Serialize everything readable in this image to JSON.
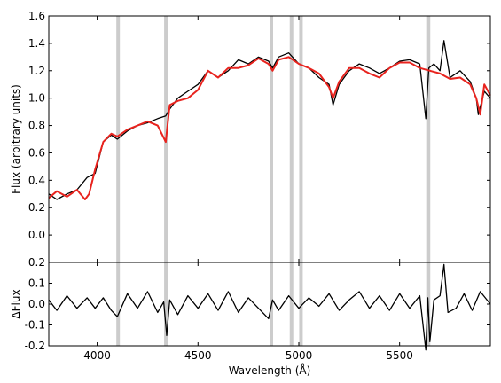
{
  "chart_data": [
    {
      "type": "line",
      "panel": "top",
      "title": "",
      "xlabel": "",
      "ylabel": "Flux (arbitrary units)",
      "xlim": [
        3760,
        5950
      ],
      "ylim": [
        -0.2,
        1.6
      ],
      "yticks": [
        "0.0",
        "0.2",
        "0.4",
        "0.6",
        "0.8",
        "1.0",
        "1.2",
        "1.4",
        "1.6"
      ],
      "xticks": [
        4000,
        4500,
        5000,
        5500
      ],
      "grid": false,
      "legend": "none",
      "series": [
        {
          "color": "#000000",
          "x": [
            3760,
            3800,
            3850,
            3900,
            3950,
            3990,
            4030,
            4070,
            4100,
            4150,
            4200,
            4250,
            4300,
            4340,
            4360,
            4400,
            4450,
            4500,
            4550,
            4600,
            4650,
            4700,
            4750,
            4800,
            4850,
            4870,
            4900,
            4950,
            5000,
            5050,
            5100,
            5150,
            5170,
            5200,
            5250,
            5300,
            5350,
            5400,
            5450,
            5500,
            5550,
            5600,
            5630,
            5645,
            5670,
            5700,
            5720,
            5750,
            5800,
            5850,
            5880,
            5890,
            5920,
            5950
          ],
          "y": [
            0.3,
            0.26,
            0.3,
            0.33,
            0.42,
            0.45,
            0.68,
            0.73,
            0.7,
            0.76,
            0.8,
            0.82,
            0.85,
            0.87,
            0.92,
            1.0,
            1.05,
            1.1,
            1.2,
            1.15,
            1.2,
            1.28,
            1.25,
            1.3,
            1.27,
            1.22,
            1.3,
            1.33,
            1.25,
            1.22,
            1.15,
            1.1,
            0.95,
            1.1,
            1.2,
            1.25,
            1.22,
            1.18,
            1.22,
            1.27,
            1.28,
            1.25,
            0.85,
            1.22,
            1.25,
            1.2,
            1.42,
            1.15,
            1.2,
            1.12,
            1.0,
            0.88,
            1.05,
            1.0
          ]
        },
        {
          "color": "#e8231e",
          "x": [
            3760,
            3800,
            3850,
            3900,
            3940,
            3960,
            3990,
            4030,
            4070,
            4100,
            4150,
            4200,
            4250,
            4300,
            4340,
            4360,
            4400,
            4450,
            4500,
            4550,
            4600,
            4650,
            4700,
            4750,
            4800,
            4850,
            4870,
            4900,
            4950,
            5000,
            5050,
            5100,
            5150,
            5170,
            5200,
            5250,
            5300,
            5350,
            5400,
            5450,
            5500,
            5550,
            5600,
            5650,
            5700,
            5750,
            5800,
            5850,
            5880,
            5900,
            5920,
            5950
          ],
          "y": [
            0.27,
            0.32,
            0.28,
            0.33,
            0.26,
            0.3,
            0.48,
            0.68,
            0.74,
            0.72,
            0.77,
            0.8,
            0.83,
            0.8,
            0.68,
            0.95,
            0.98,
            1.0,
            1.06,
            1.2,
            1.15,
            1.22,
            1.22,
            1.24,
            1.29,
            1.25,
            1.2,
            1.28,
            1.3,
            1.25,
            1.22,
            1.18,
            1.08,
            1.0,
            1.12,
            1.22,
            1.22,
            1.18,
            1.15,
            1.22,
            1.26,
            1.26,
            1.22,
            1.2,
            1.18,
            1.14,
            1.15,
            1.1,
            1.0,
            0.88,
            1.1,
            1.02
          ]
        }
      ],
      "shaded_bands": [
        [
          4095,
          4110
        ],
        [
          4332,
          4345
        ],
        [
          4855,
          4870
        ],
        [
          4955,
          4965
        ],
        [
          5002,
          5015
        ],
        [
          5632,
          5652
        ]
      ]
    },
    {
      "type": "line",
      "panel": "bottom",
      "title": "",
      "xlabel": "Wavelength (Å)",
      "ylabel": "ΔFlux",
      "xlim": [
        3760,
        5950
      ],
      "ylim": [
        -0.2,
        0.2
      ],
      "yticks": [
        "-0.2",
        "-0.1",
        "0.0",
        "0.1",
        "0.2"
      ],
      "xticks": [
        4000,
        4500,
        5000,
        5500
      ],
      "grid": false,
      "legend": "none",
      "series": [
        {
          "color": "#000000",
          "x": [
            3760,
            3800,
            3850,
            3900,
            3950,
            3990,
            4030,
            4070,
            4100,
            4150,
            4200,
            4250,
            4300,
            4330,
            4345,
            4360,
            4400,
            4450,
            4500,
            4550,
            4600,
            4650,
            4700,
            4750,
            4800,
            4850,
            4870,
            4900,
            4950,
            5000,
            5050,
            5100,
            5150,
            5200,
            5250,
            5300,
            5350,
            5400,
            5450,
            5500,
            5550,
            5600,
            5630,
            5640,
            5650,
            5670,
            5700,
            5720,
            5740,
            5780,
            5820,
            5860,
            5900,
            5950
          ],
          "y": [
            0.02,
            -0.03,
            0.04,
            -0.02,
            0.03,
            -0.02,
            0.03,
            -0.03,
            -0.06,
            0.05,
            -0.02,
            0.06,
            -0.04,
            0.01,
            -0.15,
            0.02,
            -0.05,
            0.04,
            -0.02,
            0.05,
            -0.03,
            0.06,
            -0.04,
            0.03,
            -0.02,
            -0.07,
            0.02,
            -0.03,
            0.04,
            -0.02,
            0.03,
            -0.01,
            0.05,
            -0.03,
            0.02,
            0.06,
            -0.02,
            0.04,
            -0.03,
            0.05,
            -0.02,
            0.04,
            -0.22,
            0.03,
            -0.18,
            0.02,
            0.04,
            0.19,
            -0.04,
            -0.02,
            0.05,
            -0.03,
            0.06,
            0.0
          ]
        }
      ],
      "shaded_bands": [
        [
          4095,
          4110
        ],
        [
          4332,
          4345
        ],
        [
          4855,
          4870
        ],
        [
          4955,
          4965
        ],
        [
          5002,
          5015
        ],
        [
          5632,
          5652
        ]
      ]
    }
  ]
}
